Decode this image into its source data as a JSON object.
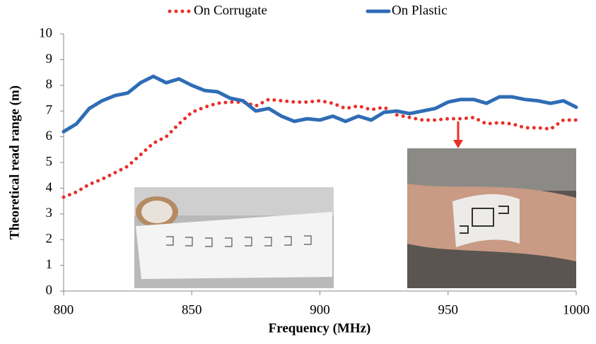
{
  "chart_data": {
    "type": "line",
    "xlabel": "Frequency (MHz)",
    "ylabel": "Theoretical read range (m)",
    "legend": "top",
    "grid": false,
    "x": [
      800,
      805,
      810,
      815,
      820,
      825,
      830,
      835,
      840,
      845,
      850,
      855,
      860,
      865,
      870,
      875,
      880,
      885,
      890,
      895,
      900,
      905,
      910,
      915,
      920,
      925,
      930,
      935,
      940,
      945,
      950,
      955,
      960,
      965,
      970,
      975,
      980,
      985,
      990,
      995,
      1000
    ],
    "series": [
      {
        "name": "On Corrugate",
        "color": "#e8302a",
        "style": "dotted",
        "values": [
          3.65,
          3.85,
          4.15,
          4.35,
          4.6,
          4.85,
          5.3,
          5.75,
          6.0,
          6.5,
          6.95,
          7.15,
          7.3,
          7.35,
          7.35,
          7.2,
          7.45,
          7.4,
          7.35,
          7.35,
          7.4,
          7.3,
          7.1,
          7.2,
          7.05,
          7.15,
          6.85,
          6.75,
          6.65,
          6.65,
          6.7,
          6.7,
          6.75,
          6.5,
          6.55,
          6.5,
          6.35,
          6.35,
          6.3,
          6.65,
          6.65
        ]
      },
      {
        "name": "On Plastic",
        "color": "#2f6db5",
        "style": "solid",
        "values": [
          6.2,
          6.5,
          7.1,
          7.4,
          7.6,
          7.7,
          8.1,
          8.35,
          8.1,
          8.25,
          8.0,
          7.8,
          7.75,
          7.5,
          7.4,
          7.0,
          7.1,
          6.8,
          6.6,
          6.7,
          6.65,
          6.8,
          6.6,
          6.8,
          6.65,
          6.95,
          7.0,
          6.9,
          7.0,
          7.1,
          7.35,
          7.45,
          7.45,
          7.3,
          7.55,
          7.55,
          7.45,
          7.4,
          7.3,
          7.4,
          7.15
        ]
      }
    ],
    "xlim": [
      800,
      1000
    ],
    "xticks": [
      800,
      850,
      900,
      950,
      1000
    ],
    "ylim": [
      0,
      10
    ],
    "yticks": [
      0,
      1,
      2,
      3,
      4,
      5,
      6,
      7,
      8,
      9,
      10
    ]
  }
}
